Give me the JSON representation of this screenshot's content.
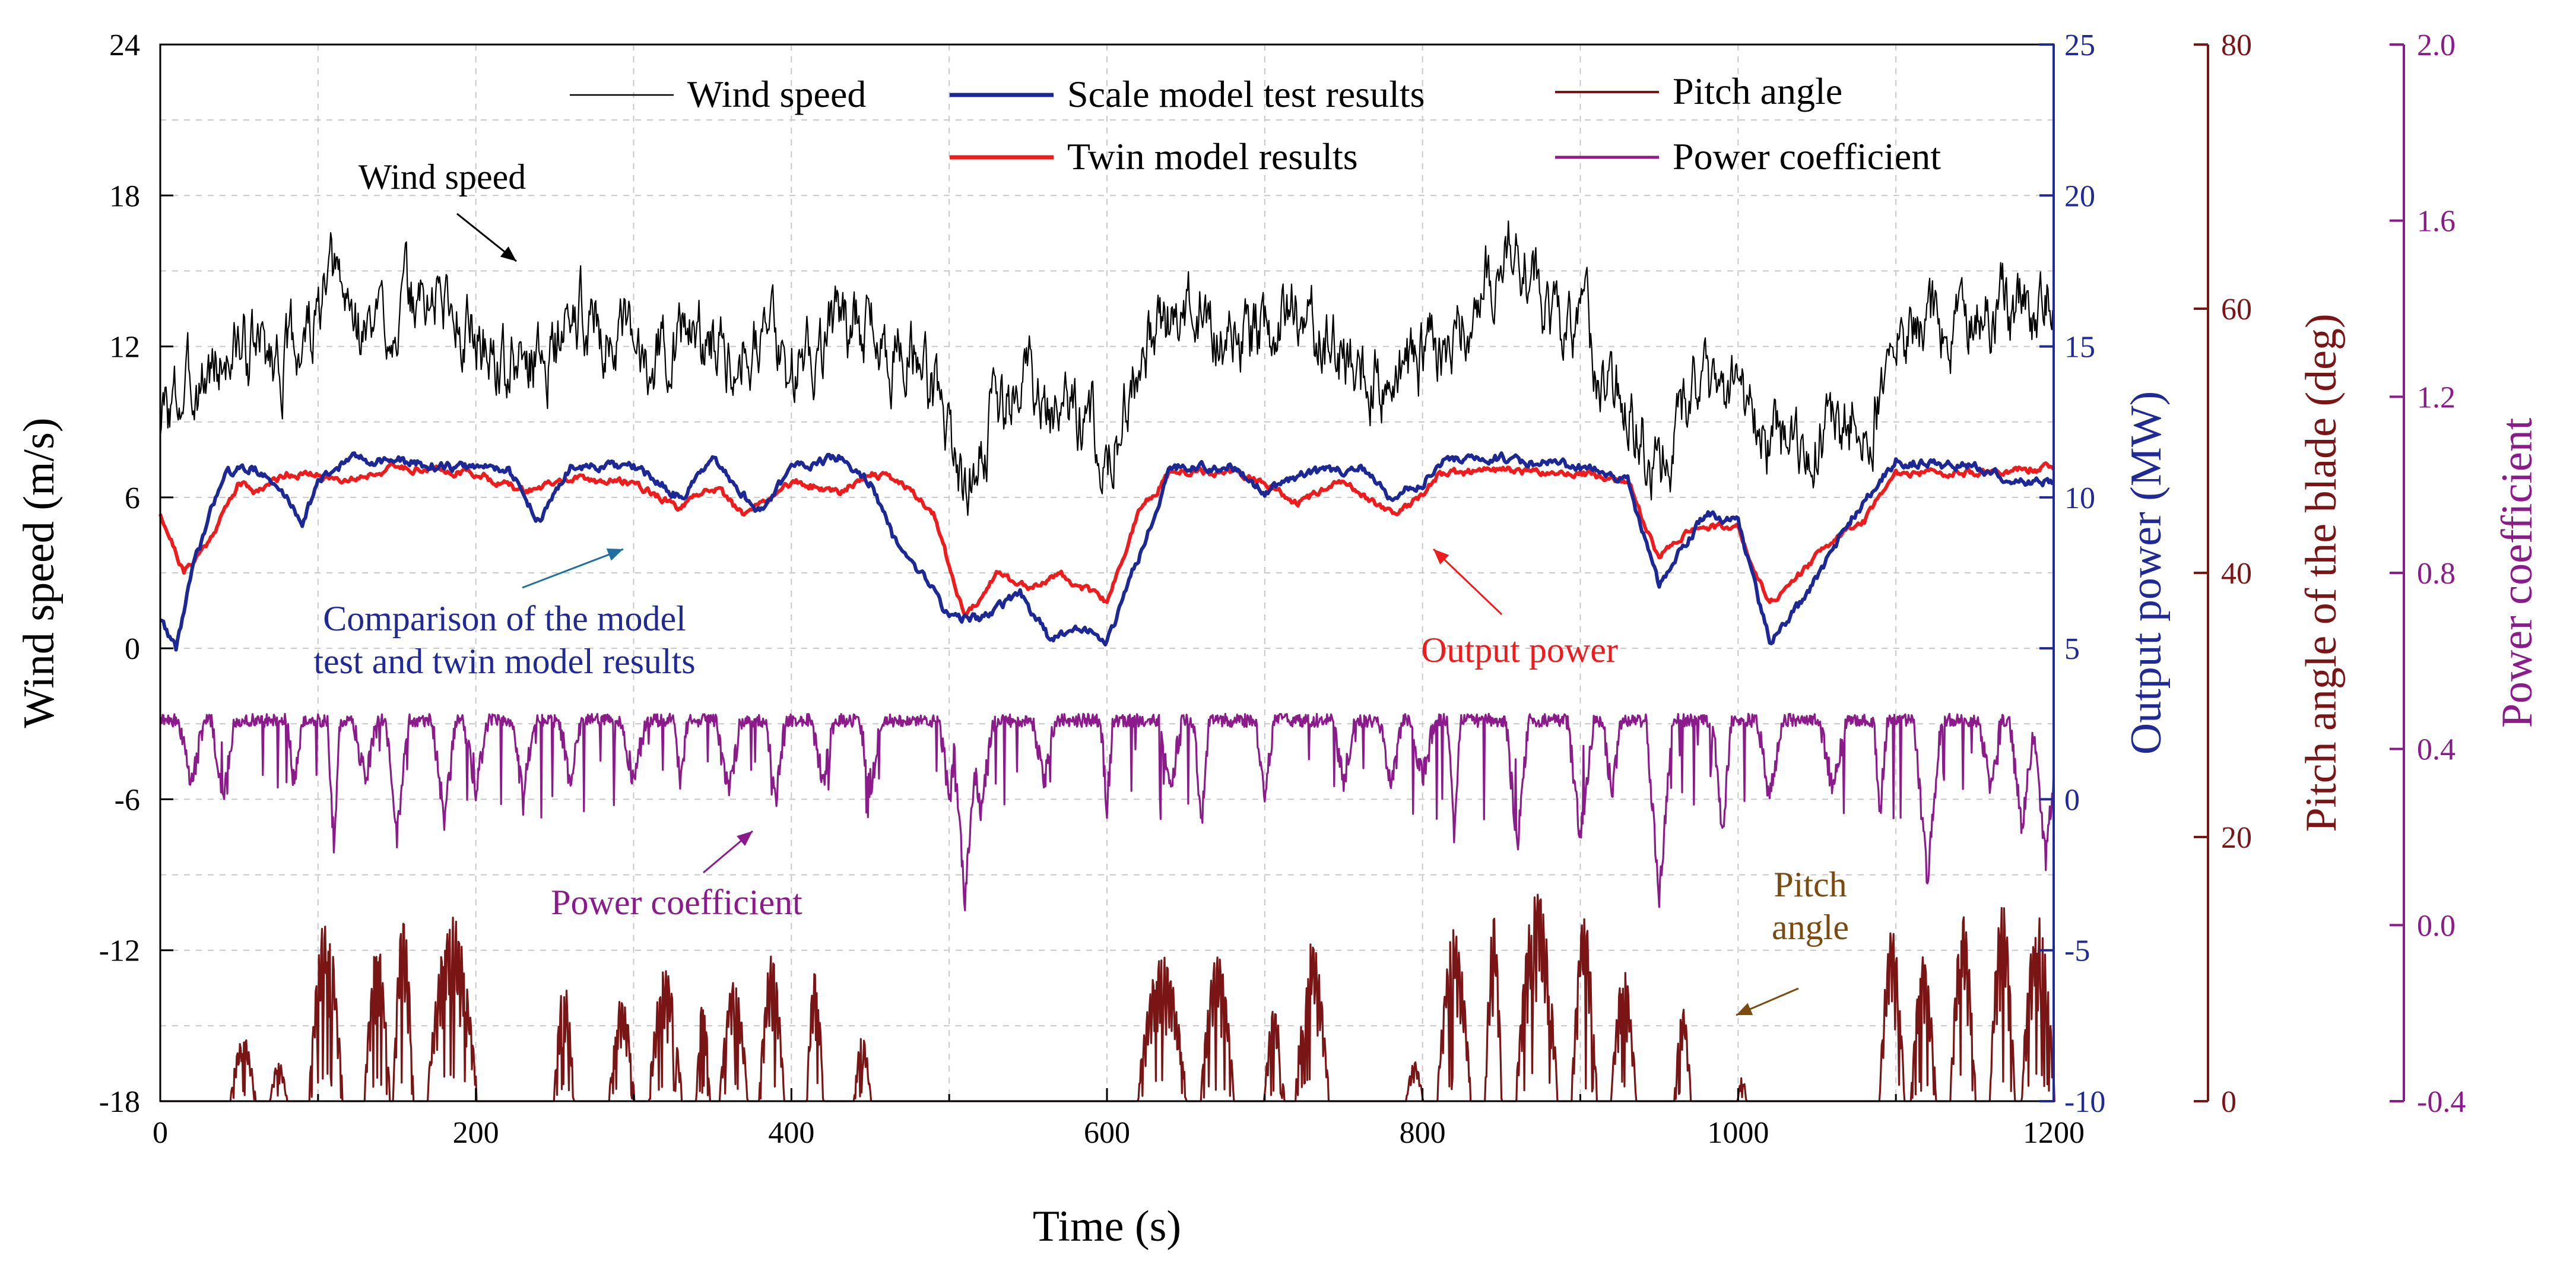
{
  "chart_data": {
    "type": "line",
    "x": {
      "label": "Time (s)",
      "range": [
        0,
        1200
      ],
      "ticks": [
        0,
        200,
        400,
        600,
        800,
        1000,
        1200
      ],
      "tick_labels": [
        "0",
        "200",
        "400",
        "600",
        "800",
        "1000",
        "1200"
      ]
    },
    "axes": {
      "wind": {
        "label": "Wind speed (m/s)",
        "range": [
          -18,
          24
        ],
        "ticks": [
          -18,
          -12,
          -6,
          0,
          6,
          12,
          18,
          24
        ],
        "tick_labels": [
          "-18",
          "-12",
          "-6",
          "0",
          "6",
          "12",
          "18",
          "24"
        ],
        "color": "#000000"
      },
      "power": {
        "label": "Output power (MW)",
        "range": [
          -10,
          25
        ],
        "ticks": [
          -10,
          -5,
          0,
          5,
          10,
          15,
          20,
          25
        ],
        "tick_labels": [
          "-10",
          "-5",
          "0",
          "5",
          "10",
          "15",
          "20",
          "25"
        ],
        "color": "#1f2a96"
      },
      "pitch": {
        "label": "Pitch angle of the blade (deg)",
        "range": [
          0,
          80
        ],
        "ticks": [
          0,
          20,
          40,
          60,
          80
        ],
        "tick_labels": [
          "0",
          "20",
          "40",
          "60",
          "80"
        ],
        "color": "#7a1515"
      },
      "cp": {
        "label": "Power coefficient",
        "range": [
          -0.4,
          2.0
        ],
        "ticks": [
          -0.4,
          0.0,
          0.4,
          0.8,
          1.2,
          1.6,
          2.0
        ],
        "tick_labels": [
          "-0.4",
          "0.0",
          "0.4",
          "0.8",
          "1.2",
          "1.6",
          "2.0"
        ],
        "color": "#8b1a8b"
      }
    },
    "legend": {
      "placement": "top",
      "entries": [
        {
          "series": "wind",
          "label": "Wind speed"
        },
        {
          "series": "scale",
          "label": "Scale model test results"
        },
        {
          "series": "pitch",
          "label": "Pitch angle"
        },
        {
          "series": "twin",
          "label": "Twin model results"
        },
        {
          "series": "cp",
          "label": "Power coefficient"
        }
      ]
    },
    "annotations": [
      {
        "id": "wind",
        "lines": [
          "Wind speed"
        ],
        "color": "#000000"
      },
      {
        "id": "comparison",
        "lines": [
          "Comparison of the model",
          "test and twin model results"
        ],
        "color": "#1f2a96"
      },
      {
        "id": "output",
        "lines": [
          "Output power"
        ],
        "color": "#ee1c1c"
      },
      {
        "id": "cp",
        "lines": [
          "Power coefficient"
        ],
        "color": "#8b1a8b"
      },
      {
        "id": "pitch",
        "lines": [
          "Pitch",
          "angle"
        ],
        "color": "#7a4a10"
      }
    ],
    "series": [
      {
        "id": "wind",
        "name": "Wind speed",
        "axis": "wind",
        "color": "#000000",
        "noise": 0.9,
        "points": [
          [
            0,
            9
          ],
          [
            20,
            10.5
          ],
          [
            50,
            12
          ],
          [
            80,
            11.5
          ],
          [
            100,
            13
          ],
          [
            110,
            14.5
          ],
          [
            130,
            12.5
          ],
          [
            150,
            13.5
          ],
          [
            180,
            14
          ],
          [
            200,
            12.5
          ],
          [
            220,
            11
          ],
          [
            250,
            12
          ],
          [
            270,
            13.5
          ],
          [
            300,
            11.5
          ],
          [
            330,
            12.5
          ],
          [
            360,
            12
          ],
          [
            380,
            13
          ],
          [
            400,
            11
          ],
          [
            420,
            12.5
          ],
          [
            440,
            13
          ],
          [
            460,
            12
          ],
          [
            480,
            11.5
          ],
          [
            500,
            9
          ],
          [
            510,
            6
          ],
          [
            520,
            8.5
          ],
          [
            550,
            10.5
          ],
          [
            580,
            9.5
          ],
          [
            600,
            8
          ],
          [
            630,
            12.5
          ],
          [
            660,
            13.5
          ],
          [
            690,
            12
          ],
          [
            720,
            13.5
          ],
          [
            750,
            11.5
          ],
          [
            780,
            10.5
          ],
          [
            800,
            11.5
          ],
          [
            820,
            12.5
          ],
          [
            850,
            15.5
          ],
          [
            860,
            16
          ],
          [
            880,
            13.5
          ],
          [
            900,
            12.5
          ],
          [
            930,
            10
          ],
          [
            950,
            7
          ],
          [
            970,
            10.5
          ],
          [
            1000,
            9.5
          ],
          [
            1030,
            8
          ],
          [
            1060,
            8.5
          ],
          [
            1090,
            10
          ],
          [
            1100,
            12.5
          ],
          [
            1150,
            13.5
          ],
          [
            1180,
            13.5
          ],
          [
            1200,
            14
          ]
        ]
      },
      {
        "id": "scale",
        "name": "Scale model test results",
        "axis": "power",
        "color": "#1b2896",
        "noise": 0.25,
        "points": [
          [
            0,
            6
          ],
          [
            10,
            5
          ],
          [
            20,
            7.5
          ],
          [
            40,
            10.8
          ],
          [
            60,
            11
          ],
          [
            80,
            10
          ],
          [
            90,
            9.2
          ],
          [
            100,
            10.5
          ],
          [
            120,
            11.3
          ],
          [
            150,
            11.2
          ],
          [
            180,
            11
          ],
          [
            220,
            11
          ],
          [
            240,
            9.2
          ],
          [
            260,
            11
          ],
          [
            300,
            11
          ],
          [
            330,
            10
          ],
          [
            350,
            11.2
          ],
          [
            380,
            9.5
          ],
          [
            400,
            11
          ],
          [
            430,
            11.3
          ],
          [
            450,
            10.5
          ],
          [
            470,
            8
          ],
          [
            490,
            7
          ],
          [
            500,
            6
          ],
          [
            520,
            6
          ],
          [
            545,
            6.8
          ],
          [
            565,
            5.2
          ],
          [
            580,
            5.8
          ],
          [
            600,
            5.2
          ],
          [
            620,
            8
          ],
          [
            640,
            11
          ],
          [
            680,
            11
          ],
          [
            700,
            10.2
          ],
          [
            720,
            10.7
          ],
          [
            760,
            11
          ],
          [
            780,
            10
          ],
          [
            800,
            10.5
          ],
          [
            810,
            11.2
          ],
          [
            850,
            11.3
          ],
          [
            900,
            11
          ],
          [
            930,
            10.5
          ],
          [
            950,
            7
          ],
          [
            960,
            8
          ],
          [
            980,
            9.5
          ],
          [
            1000,
            9.2
          ],
          [
            1020,
            5.2
          ],
          [
            1040,
            6.5
          ],
          [
            1070,
            9.2
          ],
          [
            1100,
            11.2
          ],
          [
            1150,
            11
          ],
          [
            1180,
            10.5
          ],
          [
            1200,
            10.5
          ]
        ]
      },
      {
        "id": "twin",
        "name": "Twin model results",
        "axis": "power",
        "color": "#ee1c1c",
        "noise": 0.2,
        "points": [
          [
            0,
            9.5
          ],
          [
            15,
            7.5
          ],
          [
            30,
            8.5
          ],
          [
            50,
            10.5
          ],
          [
            60,
            10.2
          ],
          [
            80,
            10.8
          ],
          [
            120,
            10.6
          ],
          [
            150,
            11
          ],
          [
            200,
            10.8
          ],
          [
            230,
            10.2
          ],
          [
            260,
            10.6
          ],
          [
            300,
            10.5
          ],
          [
            330,
            9.6
          ],
          [
            350,
            10.4
          ],
          [
            370,
            9.4
          ],
          [
            400,
            10.5
          ],
          [
            430,
            10.2
          ],
          [
            450,
            10.8
          ],
          [
            470,
            10.5
          ],
          [
            490,
            9.5
          ],
          [
            510,
            6
          ],
          [
            530,
            7.5
          ],
          [
            550,
            7
          ],
          [
            570,
            7.5
          ],
          [
            600,
            6.5
          ],
          [
            620,
            9.5
          ],
          [
            640,
            10.8
          ],
          [
            680,
            10.8
          ],
          [
            700,
            10.5
          ],
          [
            720,
            9.8
          ],
          [
            750,
            10.5
          ],
          [
            780,
            9.5
          ],
          [
            800,
            10
          ],
          [
            810,
            10.8
          ],
          [
            850,
            10.9
          ],
          [
            900,
            10.8
          ],
          [
            930,
            10.5
          ],
          [
            950,
            8
          ],
          [
            970,
            9
          ],
          [
            1000,
            9
          ],
          [
            1020,
            6.5
          ],
          [
            1040,
            7.5
          ],
          [
            1060,
            8.6
          ],
          [
            1080,
            9.2
          ],
          [
            1100,
            10.8
          ],
          [
            1150,
            10.8
          ],
          [
            1200,
            11
          ]
        ]
      },
      {
        "id": "cp",
        "name": "Power coefficient",
        "axis": "cp",
        "color": "#8b1a8b",
        "base": 0.48,
        "dips": [
          [
            20,
            0.32
          ],
          [
            40,
            0.28
          ],
          [
            85,
            0.3
          ],
          [
            110,
            0.18
          ],
          [
            130,
            0.33
          ],
          [
            150,
            0.2
          ],
          [
            180,
            0.24
          ],
          [
            200,
            0.3
          ],
          [
            230,
            0.28
          ],
          [
            260,
            0.32
          ],
          [
            300,
            0.33
          ],
          [
            330,
            0.32
          ],
          [
            360,
            0.3
          ],
          [
            390,
            0.27
          ],
          [
            420,
            0.33
          ],
          [
            450,
            0.3
          ],
          [
            500,
            0.28
          ],
          [
            510,
            0.05
          ],
          [
            520,
            0.26
          ],
          [
            560,
            0.32
          ],
          [
            600,
            0.26
          ],
          [
            640,
            0.3
          ],
          [
            660,
            0.22
          ],
          [
            700,
            0.3
          ],
          [
            750,
            0.32
          ],
          [
            780,
            0.3
          ],
          [
            800,
            0.33
          ],
          [
            820,
            0.2
          ],
          [
            860,
            0.18
          ],
          [
            900,
            0.2
          ],
          [
            920,
            0.3
          ],
          [
            950,
            0.06
          ],
          [
            990,
            0.2
          ],
          [
            1020,
            0.28
          ],
          [
            1060,
            0.3
          ],
          [
            1090,
            0.26
          ],
          [
            1120,
            0.1
          ],
          [
            1160,
            0.3
          ],
          [
            1180,
            0.22
          ],
          [
            1195,
            0.15
          ]
        ]
      },
      {
        "id": "pitch",
        "name": "Pitch angle",
        "axis": "pitch",
        "color": "#7a1515",
        "bursts": [
          [
            45,
            60,
            5
          ],
          [
            70,
            80,
            3
          ],
          [
            95,
            115,
            14
          ],
          [
            130,
            145,
            12
          ],
          [
            148,
            160,
            14
          ],
          [
            170,
            200,
            14
          ],
          [
            250,
            262,
            9
          ],
          [
            285,
            300,
            8
          ],
          [
            310,
            330,
            10
          ],
          [
            340,
            348,
            8
          ],
          [
            355,
            372,
            9
          ],
          [
            380,
            395,
            11
          ],
          [
            410,
            420,
            10
          ],
          [
            440,
            450,
            5
          ],
          [
            620,
            650,
            11
          ],
          [
            660,
            680,
            11
          ],
          [
            700,
            712,
            7
          ],
          [
            720,
            740,
            12
          ],
          [
            790,
            800,
            3
          ],
          [
            810,
            830,
            13
          ],
          [
            840,
            850,
            14
          ],
          [
            860,
            885,
            16
          ],
          [
            895,
            910,
            14
          ],
          [
            920,
            935,
            10
          ],
          [
            960,
            970,
            7
          ],
          [
            1000,
            1005,
            2
          ],
          [
            1090,
            1105,
            13
          ],
          [
            1110,
            1125,
            11
          ],
          [
            1135,
            1150,
            14
          ],
          [
            1160,
            1175,
            15
          ],
          [
            1180,
            1200,
            14
          ]
        ]
      }
    ]
  }
}
